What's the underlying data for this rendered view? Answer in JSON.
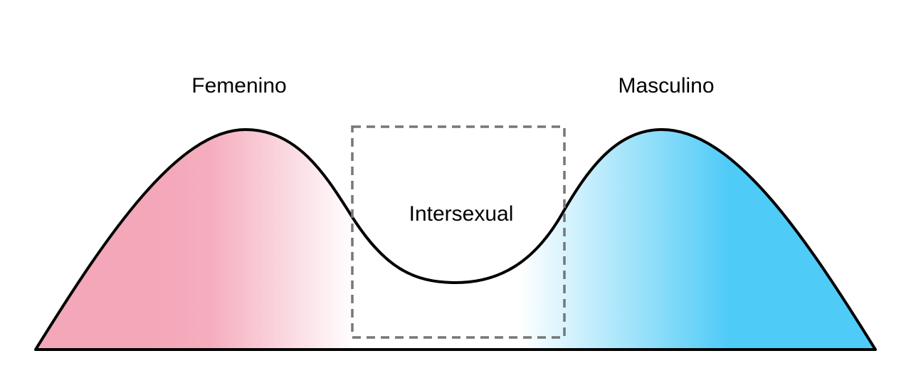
{
  "labels": {
    "female": "Femenino",
    "male": "Masculino",
    "intersex": "Intersexual"
  },
  "colors": {
    "female": "#f4a7b9",
    "male": "#4fcbf7",
    "outline": "#000000",
    "box": "#777777"
  }
}
